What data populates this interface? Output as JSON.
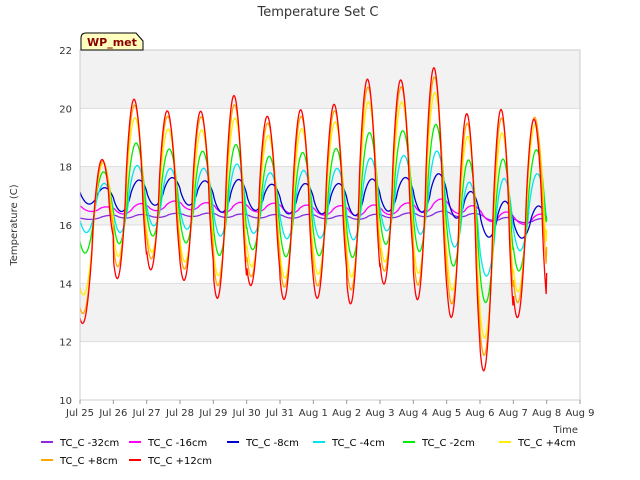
{
  "chart_data": {
    "type": "line",
    "title": "Temperature Set C",
    "xlabel": "Time",
    "ylabel": "Temperature (C)",
    "tag": "WP_met",
    "ylim": [
      10,
      22
    ],
    "xlim": [
      0,
      15
    ],
    "grid": true,
    "legend_position": "bottom",
    "yticks": [
      10,
      12,
      14,
      16,
      18,
      20,
      22
    ],
    "xticks": [
      {
        "x": 0,
        "label": "Jul 25"
      },
      {
        "x": 1,
        "label": "Jul 26"
      },
      {
        "x": 2,
        "label": "Jul 27"
      },
      {
        "x": 3,
        "label": "Jul 28"
      },
      {
        "x": 4,
        "label": "Jul 29"
      },
      {
        "x": 5,
        "label": "Jul 30"
      },
      {
        "x": 6,
        "label": "Jul 31"
      },
      {
        "x": 7,
        "label": "Aug 1"
      },
      {
        "x": 8,
        "label": "Aug 2"
      },
      {
        "x": 9,
        "label": "Aug 3"
      },
      {
        "x": 10,
        "label": "Aug 4"
      },
      {
        "x": 11,
        "label": "Aug 5"
      },
      {
        "x": 12,
        "label": "Aug 6"
      },
      {
        "x": 13,
        "label": "Aug 7"
      },
      {
        "x": 14,
        "label": "Aug 8"
      },
      {
        "x": 15,
        "label": "Aug 9"
      }
    ],
    "day_max": [
      17.5,
      20.9,
      20.4,
      20.0,
      20.9,
      20.1,
      20.2,
      20.3,
      20.8,
      20.9,
      21.5,
      21.1,
      19.3,
      19.9,
      20.6
    ],
    "day_min": [
      13.4,
      14.8,
      14.8,
      14.2,
      13.9,
      14.2,
      13.7,
      13.8,
      13.3,
      14.0,
      13.3,
      13.1,
      11.0,
      13.0,
      16.1
    ],
    "series": [
      {
        "name": "TC_C -32cm",
        "color": "#8a2be2",
        "points": [
          [
            0.0,
            16.2
          ],
          [
            1,
            16.3
          ],
          [
            2,
            16.3
          ],
          [
            3,
            16.35
          ],
          [
            4,
            16.35
          ],
          [
            5,
            16.3
          ],
          [
            6,
            16.3
          ],
          [
            7,
            16.3
          ],
          [
            8,
            16.25
          ],
          [
            9,
            16.3
          ],
          [
            10,
            16.35
          ],
          [
            11,
            16.4
          ],
          [
            12,
            16.3
          ],
          [
            13,
            16.15
          ],
          [
            14.0,
            16.15
          ]
        ]
      },
      {
        "name": "TC_C -16cm",
        "color": "#ff00ff",
        "points": [
          [
            0.0,
            16.6
          ],
          [
            1,
            16.5
          ],
          [
            2,
            16.6
          ],
          [
            3,
            16.7
          ],
          [
            4,
            16.6
          ],
          [
            5,
            16.6
          ],
          [
            6,
            16.6
          ],
          [
            7,
            16.5
          ],
          [
            8,
            16.5
          ],
          [
            9,
            16.5
          ],
          [
            10,
            16.6
          ],
          [
            11,
            16.7
          ],
          [
            12,
            16.4
          ],
          [
            13,
            16.2
          ],
          [
            14.0,
            16.2
          ]
        ]
      },
      {
        "name": "TC_C -8cm",
        "color": "#0000cd",
        "points": [
          [
            0.0,
            17.1
          ],
          [
            1,
            16.9
          ],
          [
            2,
            17.1
          ],
          [
            3,
            17.2
          ],
          [
            4,
            17.0
          ],
          [
            5,
            17.0
          ],
          [
            6,
            16.9
          ],
          [
            7,
            16.9
          ],
          [
            8,
            16.9
          ],
          [
            9,
            17.0
          ],
          [
            10,
            17.1
          ],
          [
            11,
            17.1
          ],
          [
            12,
            16.3
          ],
          [
            13,
            16.1
          ],
          [
            14.0,
            16.1
          ]
        ]
      },
      {
        "name": "TC_C -4cm",
        "color": "#00e5ee",
        "points": [
          [
            0.0,
            16.4
          ],
          [
            1,
            16.8
          ],
          [
            2,
            17.0
          ],
          [
            3,
            16.9
          ],
          [
            4,
            16.9
          ],
          [
            5,
            16.8
          ],
          [
            6,
            16.7
          ],
          [
            7,
            16.7
          ],
          [
            8,
            16.8
          ],
          [
            9,
            17.0
          ],
          [
            10,
            17.2
          ],
          [
            11,
            17.0
          ],
          [
            12,
            15.6
          ],
          [
            13,
            16.3
          ],
          [
            14.0,
            16.6
          ]
        ]
      },
      {
        "name": "TC_C -2cm",
        "color": "#00ee00",
        "points": [
          [
            0.0,
            16.0
          ],
          [
            1,
            17.0
          ],
          [
            2,
            17.2
          ],
          [
            3,
            17.0
          ],
          [
            4,
            16.9
          ],
          [
            5,
            16.8
          ],
          [
            6,
            16.7
          ],
          [
            7,
            16.7
          ],
          [
            8,
            16.9
          ],
          [
            9,
            17.2
          ],
          [
            10,
            17.4
          ],
          [
            11,
            17.1
          ],
          [
            12,
            15.5
          ],
          [
            13,
            16.2
          ],
          [
            14.0,
            16.9
          ]
        ]
      },
      {
        "name": "TC_C +4cm",
        "color": "#ffee00",
        "points": [
          [
            0.0,
            14.9
          ],
          [
            1,
            17.3
          ],
          [
            2,
            17.3
          ],
          [
            3,
            17.0
          ],
          [
            4,
            17.0
          ],
          [
            5,
            16.9
          ],
          [
            6,
            16.7
          ],
          [
            7,
            16.8
          ],
          [
            8,
            17.1
          ],
          [
            9,
            17.4
          ],
          [
            10,
            17.6
          ],
          [
            11,
            17.2
          ],
          [
            12,
            15.2
          ],
          [
            13,
            16.3
          ],
          [
            14.0,
            17.0
          ]
        ]
      },
      {
        "name": "TC_C +8cm",
        "color": "#ffa500",
        "points": [
          [
            0.0,
            14.5
          ],
          [
            1,
            17.3
          ],
          [
            2,
            17.4
          ],
          [
            3,
            17.1
          ],
          [
            4,
            17.1
          ],
          [
            5,
            16.9
          ],
          [
            6,
            16.8
          ],
          [
            7,
            16.8
          ],
          [
            8,
            17.1
          ],
          [
            9,
            17.5
          ],
          [
            10,
            17.7
          ],
          [
            11,
            17.2
          ],
          [
            12,
            15.1
          ],
          [
            13,
            16.4
          ],
          [
            14.0,
            16.7
          ]
        ]
      },
      {
        "name": "TC_C +12cm",
        "color": "#ff0000",
        "points": [
          [
            0.0,
            14.4
          ],
          [
            1,
            17.2
          ],
          [
            2,
            17.3
          ],
          [
            3,
            17.0
          ],
          [
            4,
            17.0
          ],
          [
            5,
            16.9
          ],
          [
            6,
            16.7
          ],
          [
            7,
            16.7
          ],
          [
            8,
            17.0
          ],
          [
            9,
            17.4
          ],
          [
            10,
            17.6
          ],
          [
            11,
            17.1
          ],
          [
            12,
            15.0
          ],
          [
            13,
            16.3
          ],
          [
            14.0,
            16.1
          ]
        ]
      }
    ]
  }
}
